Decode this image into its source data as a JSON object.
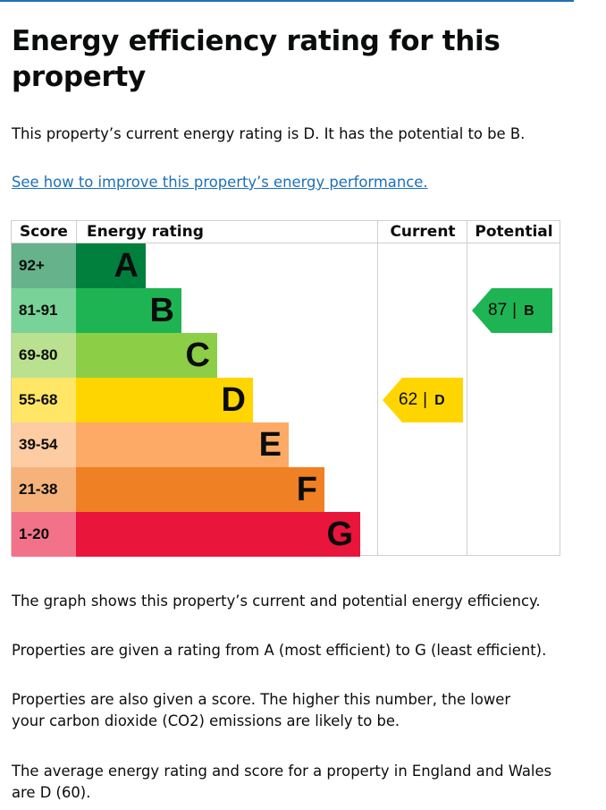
{
  "page": {
    "heading": "Energy efficiency rating for this property",
    "intro": "This property’s current energy rating is D. It has the potential to be B.",
    "link": "See how to improve this property’s energy performance.",
    "para1": "The graph shows this property’s current and potential energy efficiency.",
    "para2": "Properties are given a rating from A (most efficient) to G (least efficient).",
    "para3": "Properties are also given a score. The higher this number, the lower your carbon dioxide (CO2) emissions are likely to be.",
    "para4": "The average energy rating and score for a property in England and Wales are D (60)."
  },
  "chart": {
    "headers": {
      "score": "Score",
      "rating": "Energy rating",
      "current": "Current",
      "potential": "Potential"
    },
    "bands": [
      {
        "score": "92+",
        "letter": "A",
        "bar_color": "#007f3d",
        "score_bg": "#66b28b"
      },
      {
        "score": "81-91",
        "letter": "B",
        "bar_color": "#1fb453",
        "score_bg": "#79d298"
      },
      {
        "score": "69-80",
        "letter": "C",
        "bar_color": "#8cce46",
        "score_bg": "#bae190"
      },
      {
        "score": "55-68",
        "letter": "D",
        "bar_color": "#ffd500",
        "score_bg": "#ffe666"
      },
      {
        "score": "39-54",
        "letter": "E",
        "bar_color": "#fcaa65",
        "score_bg": "#fdcca3"
      },
      {
        "score": "21-38",
        "letter": "F",
        "bar_color": "#ef8023",
        "score_bg": "#f5b37b"
      },
      {
        "score": "1-20",
        "letter": "G",
        "bar_color": "#e9153b",
        "score_bg": "#f27389"
      }
    ],
    "current": {
      "value": "62",
      "separator": "|",
      "letter": "D",
      "color": "#ffd500"
    },
    "potential": {
      "value": "87",
      "separator": "|",
      "letter": "B",
      "color": "#1fb453"
    }
  }
}
